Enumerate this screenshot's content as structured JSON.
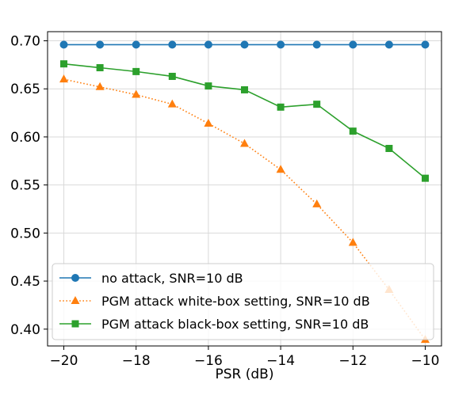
{
  "chart_data": {
    "type": "line",
    "title": "",
    "xlabel": "PSR (dB)",
    "ylabel": "",
    "x": [
      -20,
      -19,
      -18,
      -17,
      -16,
      -15,
      -14,
      -13,
      -12,
      -11,
      -10
    ],
    "xlim": [
      -20.45,
      -9.55
    ],
    "ylim": [
      0.3825,
      0.7095
    ],
    "xticks": [
      -20,
      -18,
      -16,
      -14,
      -12,
      -10
    ],
    "xtick_labels": [
      "−20",
      "−18",
      "−16",
      "−14",
      "−12",
      "−10"
    ],
    "yticks": [
      0.4,
      0.45,
      0.5,
      0.55,
      0.6,
      0.65,
      0.7
    ],
    "ytick_labels": [
      "0.40",
      "0.45",
      "0.50",
      "0.55",
      "0.60",
      "0.65",
      "0.70"
    ],
    "grid": true,
    "legend_position": "lower-left",
    "series": [
      {
        "name": "no attack, SNR=10 dB",
        "color": "#1f77b4",
        "marker": "circle",
        "line_style": "solid",
        "values": [
          0.696,
          0.696,
          0.696,
          0.696,
          0.696,
          0.696,
          0.696,
          0.696,
          0.696,
          0.696,
          0.696
        ]
      },
      {
        "name": "PGM attack white-box setting, SNR=10 dB",
        "color": "#ff7f0e",
        "marker": "triangle",
        "line_style": "dotted",
        "values": [
          0.66,
          0.652,
          0.644,
          0.634,
          0.614,
          0.593,
          0.566,
          0.53,
          0.49,
          0.441,
          0.389
        ]
      },
      {
        "name": "PGM attack black-box setting, SNR=10 dB",
        "color": "#2ca02c",
        "marker": "square",
        "line_style": "solid",
        "values": [
          0.676,
          0.672,
          0.668,
          0.663,
          0.653,
          0.649,
          0.631,
          0.634,
          0.606,
          0.588,
          0.557
        ]
      }
    ]
  }
}
